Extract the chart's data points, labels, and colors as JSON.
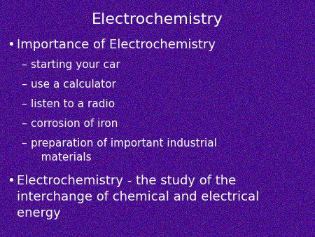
{
  "title": "Electrochemistry",
  "background_color": "#4a0d8f",
  "text_color": "#ffffff",
  "title_fontsize": 16,
  "bullet_fontsize": 13,
  "sub_fontsize": 11,
  "bullet1": "Importance of Electrochemistry",
  "subitems": [
    "starting your car",
    "use a calculator",
    "listen to a radio",
    "corrosion of iron",
    "preparation of important industrial\n   materials"
  ],
  "bullet2_line1": "Electrochemistry - the study of the",
  "bullet2_line2": "interchange of chemical and electrical",
  "bullet2_line3": "energy",
  "bullet_symbol": "•",
  "dash_symbol": "–",
  "noise_alpha": 0.08
}
